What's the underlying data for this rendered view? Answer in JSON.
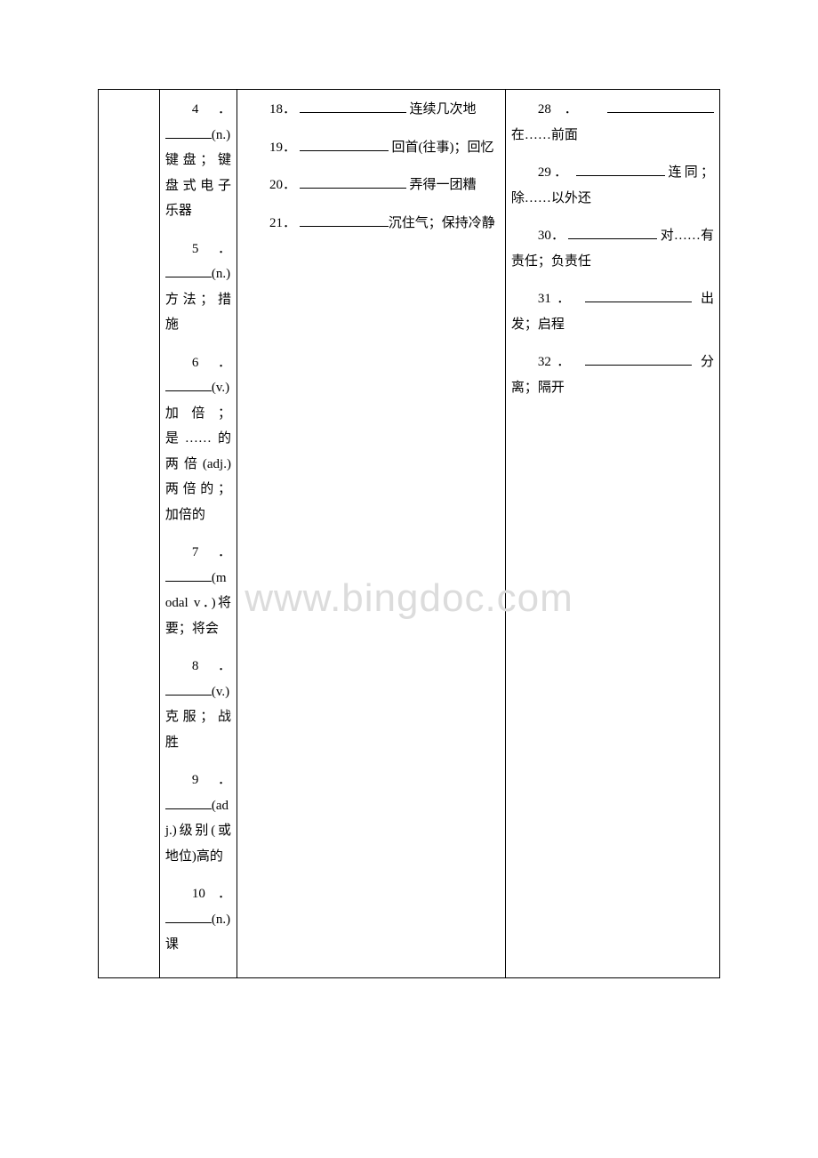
{
  "watermark": "www.bingdoc.com",
  "col1": {
    "items": [
      {
        "num": "4．",
        "pos": "(n.)",
        "def": "键盘；键盘式电子乐器"
      },
      {
        "num": "5．",
        "pos": "(n.)",
        "def": "方法；措施"
      },
      {
        "num": "6．",
        "pos": "(v.)",
        "def": "加倍；是……的两倍(adj.)两倍的；加倍的"
      },
      {
        "num": "7．",
        "pos": "(modal v．)",
        "def": "将要；将会"
      },
      {
        "num": "8．",
        "pos": "(v.)",
        "def": "克服；战胜"
      },
      {
        "num": "9．",
        "pos": "(adj.)",
        "def": "级别(或地位)高的"
      },
      {
        "num": "10．",
        "pos": "(n.)",
        "def": "课"
      }
    ]
  },
  "col2": {
    "items": [
      {
        "num": "18．",
        "def": " 连续几次地"
      },
      {
        "num": "19．",
        "def": " 回首(往事)；回忆"
      },
      {
        "num": "20．",
        "def": " 弄得一团糟"
      },
      {
        "num": "21．",
        "def": "沉住气；保持冷静"
      }
    ]
  },
  "col3": {
    "items": [
      {
        "num": "28．",
        "def": "在……前面"
      },
      {
        "num": "29．",
        "def": "连同；除……以外还"
      },
      {
        "num": "30．",
        "def": " 对……有责任；负责任"
      },
      {
        "num": "31．",
        "def": " 出发；启程"
      },
      {
        "num": "32．",
        "def": " 分离；隔开"
      }
    ]
  }
}
